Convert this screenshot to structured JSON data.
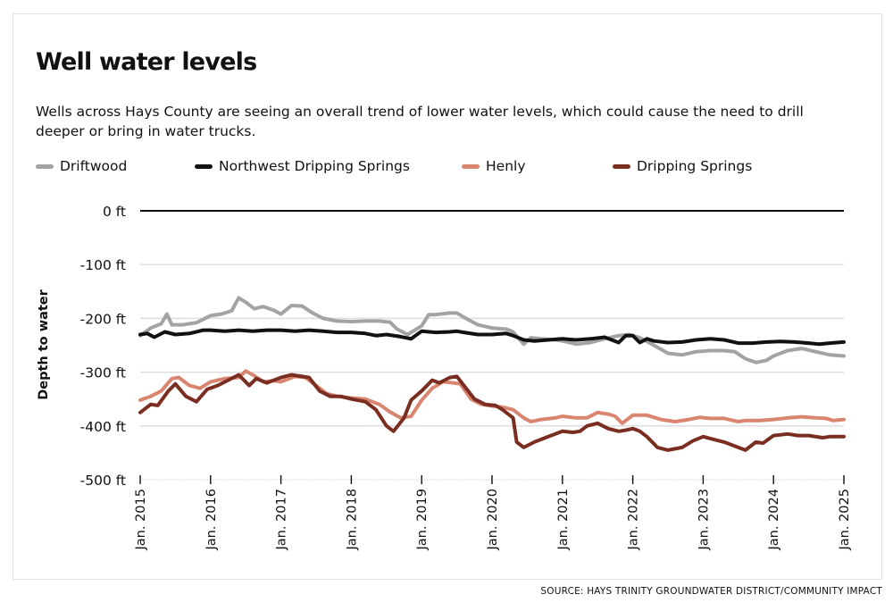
{
  "title": "Well water levels",
  "subtitle": "Wells across Hays County are seeing an overall trend of lower water levels, which could cause the need to drill deeper or bring in water trucks.",
  "source": "SOURCE: HAYS TRINITY GROUNDWATER DISTRICT/COMMUNITY IMPACT",
  "legend": [
    {
      "label": "Driftwood",
      "color": "#a3a3a3"
    },
    {
      "label": "Northwest Dripping Springs",
      "color": "#111111"
    },
    {
      "label": "Henly",
      "color": "#d98570"
    },
    {
      "label": "Dripping Springs",
      "color": "#7a2e22"
    }
  ],
  "chart_data": {
    "type": "line",
    "title": "Well water levels",
    "ylabel": "Depth to water",
    "xlabel": "",
    "ylim": [
      -500,
      0
    ],
    "xlim": [
      2015,
      2025
    ],
    "yticks": [
      {
        "value": 0,
        "label": "0 ft"
      },
      {
        "value": -100,
        "label": "-100 ft"
      },
      {
        "value": -200,
        "label": "-200 ft"
      },
      {
        "value": -300,
        "label": "-300 ft"
      },
      {
        "value": -400,
        "label": "-400 ft"
      },
      {
        "value": -500,
        "label": "-500 ft"
      }
    ],
    "xticks": [
      {
        "value": 2015,
        "label": "Jan. 2015"
      },
      {
        "value": 2016,
        "label": "Jan. 2016"
      },
      {
        "value": 2017,
        "label": "Jan. 2017"
      },
      {
        "value": 2018,
        "label": "Jan. 2018"
      },
      {
        "value": 2019,
        "label": "Jan. 2019"
      },
      {
        "value": 2020,
        "label": "Jan. 2020"
      },
      {
        "value": 2021,
        "label": "Jan. 2021"
      },
      {
        "value": 2022,
        "label": "Jan. 2022"
      },
      {
        "value": 2023,
        "label": "Jan. 2023"
      },
      {
        "value": 2024,
        "label": "Jan. 2024"
      },
      {
        "value": 2025,
        "label": "Jan. 2025"
      }
    ],
    "grid": true,
    "legend_position": "top",
    "series": [
      {
        "name": "Driftwood",
        "color": "#a3a3a3",
        "x": [
          2015.0,
          2015.15,
          2015.3,
          2015.38,
          2015.45,
          2015.6,
          2015.8,
          2016.0,
          2016.15,
          2016.3,
          2016.4,
          2016.5,
          2016.62,
          2016.75,
          2016.9,
          2017.0,
          2017.15,
          2017.3,
          2017.45,
          2017.6,
          2017.8,
          2018.0,
          2018.2,
          2018.4,
          2018.55,
          2018.65,
          2018.8,
          2019.0,
          2019.1,
          2019.2,
          2019.4,
          2019.5,
          2019.6,
          2019.8,
          2020.0,
          2020.2,
          2020.3,
          2020.45,
          2020.55,
          2020.7,
          2020.9,
          2021.0,
          2021.2,
          2021.4,
          2021.6,
          2021.8,
          2021.95,
          2022.1,
          2022.3,
          2022.5,
          2022.7,
          2022.9,
          2023.1,
          2023.3,
          2023.45,
          2023.6,
          2023.75,
          2023.9,
          2024.0,
          2024.2,
          2024.4,
          2024.6,
          2024.8,
          2025.0
        ],
        "y": [
          -232,
          -218,
          -210,
          -192,
          -212,
          -212,
          -208,
          -195,
          -192,
          -186,
          -162,
          -170,
          -182,
          -178,
          -185,
          -192,
          -176,
          -177,
          -190,
          -200,
          -205,
          -206,
          -205,
          -205,
          -207,
          -220,
          -230,
          -214,
          -193,
          -193,
          -190,
          -190,
          -198,
          -212,
          -218,
          -220,
          -225,
          -248,
          -236,
          -238,
          -240,
          -242,
          -248,
          -245,
          -238,
          -232,
          -230,
          -236,
          -250,
          -265,
          -268,
          -262,
          -260,
          -260,
          -262,
          -275,
          -282,
          -278,
          -270,
          -260,
          -256,
          -262,
          -268,
          -270
        ]
      },
      {
        "name": "Northwest Dripping Springs",
        "color": "#111111",
        "x": [
          2015.0,
          2015.1,
          2015.2,
          2015.35,
          2015.5,
          2015.7,
          2015.9,
          2016.0,
          2016.2,
          2016.4,
          2016.6,
          2016.8,
          2017.0,
          2017.2,
          2017.4,
          2017.6,
          2017.8,
          2018.0,
          2018.2,
          2018.35,
          2018.5,
          2018.7,
          2018.85,
          2019.0,
          2019.2,
          2019.4,
          2019.5,
          2019.6,
          2019.8,
          2020.0,
          2020.2,
          2020.3,
          2020.45,
          2020.6,
          2020.8,
          2021.0,
          2021.2,
          2021.4,
          2021.6,
          2021.8,
          2021.9,
          2022.0,
          2022.1,
          2022.2,
          2022.3,
          2022.5,
          2022.7,
          2022.9,
          2023.1,
          2023.3,
          2023.5,
          2023.7,
          2023.9,
          2024.1,
          2024.3,
          2024.5,
          2024.65,
          2024.8,
          2025.0
        ],
        "y": [
          -230,
          -228,
          -235,
          -225,
          -230,
          -228,
          -222,
          -222,
          -224,
          -222,
          -224,
          -222,
          -222,
          -224,
          -222,
          -224,
          -226,
          -226,
          -228,
          -232,
          -230,
          -234,
          -238,
          -224,
          -226,
          -225,
          -224,
          -226,
          -230,
          -230,
          -228,
          -232,
          -240,
          -242,
          -240,
          -238,
          -240,
          -238,
          -235,
          -245,
          -232,
          -232,
          -245,
          -238,
          -242,
          -245,
          -244,
          -240,
          -238,
          -240,
          -246,
          -246,
          -244,
          -243,
          -244,
          -246,
          -248,
          -246,
          -244
        ]
      },
      {
        "name": "Henly",
        "color": "#d98570",
        "x": [
          2015.0,
          2015.15,
          2015.3,
          2015.45,
          2015.55,
          2015.7,
          2015.85,
          2016.0,
          2016.2,
          2016.4,
          2016.5,
          2016.6,
          2016.75,
          2016.9,
          2017.0,
          2017.2,
          2017.35,
          2017.5,
          2017.65,
          2017.8,
          2018.0,
          2018.2,
          2018.4,
          2018.55,
          2018.7,
          2018.85,
          2019.0,
          2019.15,
          2019.3,
          2019.45,
          2019.55,
          2019.7,
          2019.85,
          2020.0,
          2020.15,
          2020.3,
          2020.45,
          2020.55,
          2020.7,
          2020.9,
          2021.0,
          2021.2,
          2021.35,
          2021.5,
          2021.65,
          2021.75,
          2021.85,
          2022.0,
          2022.2,
          2022.4,
          2022.6,
          2022.8,
          2022.95,
          2023.1,
          2023.3,
          2023.5,
          2023.6,
          2023.8,
          2024.0,
          2024.2,
          2024.4,
          2024.6,
          2024.75,
          2024.85,
          2025.0
        ],
        "y": [
          -352,
          -345,
          -335,
          -312,
          -310,
          -325,
          -330,
          -318,
          -312,
          -310,
          -298,
          -305,
          -318,
          -316,
          -318,
          -308,
          -310,
          -325,
          -340,
          -345,
          -348,
          -350,
          -360,
          -374,
          -385,
          -382,
          -352,
          -330,
          -318,
          -320,
          -322,
          -350,
          -360,
          -363,
          -365,
          -370,
          -385,
          -392,
          -388,
          -385,
          -382,
          -385,
          -385,
          -375,
          -378,
          -382,
          -395,
          -380,
          -380,
          -388,
          -392,
          -388,
          -384,
          -386,
          -386,
          -392,
          -390,
          -390,
          -388,
          -385,
          -383,
          -385,
          -386,
          -390,
          -388
        ]
      },
      {
        "name": "Dripping Springs",
        "color": "#7a2e22",
        "x": [
          2015.0,
          2015.15,
          2015.25,
          2015.4,
          2015.5,
          2015.65,
          2015.8,
          2015.95,
          2016.1,
          2016.25,
          2016.4,
          2016.55,
          2016.65,
          2016.8,
          2017.0,
          2017.15,
          2017.3,
          2017.4,
          2017.55,
          2017.7,
          2017.85,
          2018.0,
          2018.2,
          2018.35,
          2018.5,
          2018.6,
          2018.75,
          2018.85,
          2019.0,
          2019.15,
          2019.25,
          2019.4,
          2019.5,
          2019.6,
          2019.75,
          2019.9,
          2020.05,
          2020.15,
          2020.3,
          2020.35,
          2020.45,
          2020.6,
          2020.8,
          2021.0,
          2021.15,
          2021.25,
          2021.35,
          2021.5,
          2021.65,
          2021.8,
          2021.9,
          2022.0,
          2022.1,
          2022.2,
          2022.35,
          2022.5,
          2022.7,
          2022.85,
          2023.0,
          2023.15,
          2023.3,
          2023.5,
          2023.6,
          2023.75,
          2023.85,
          2024.0,
          2024.2,
          2024.35,
          2024.5,
          2024.7,
          2024.8,
          2025.0
        ],
        "y": [
          -375,
          -360,
          -362,
          -335,
          -322,
          -345,
          -355,
          -332,
          -325,
          -315,
          -305,
          -325,
          -312,
          -320,
          -310,
          -305,
          -308,
          -310,
          -335,
          -345,
          -345,
          -350,
          -355,
          -370,
          -400,
          -410,
          -385,
          -352,
          -335,
          -315,
          -320,
          -310,
          -308,
          -325,
          -350,
          -360,
          -362,
          -370,
          -385,
          -430,
          -440,
          -430,
          -420,
          -410,
          -412,
          -410,
          -400,
          -395,
          -405,
          -410,
          -408,
          -405,
          -410,
          -420,
          -440,
          -445,
          -440,
          -428,
          -420,
          -425,
          -430,
          -440,
          -445,
          -430,
          -432,
          -418,
          -415,
          -418,
          -418,
          -422,
          -420,
          -420
        ]
      }
    ]
  }
}
